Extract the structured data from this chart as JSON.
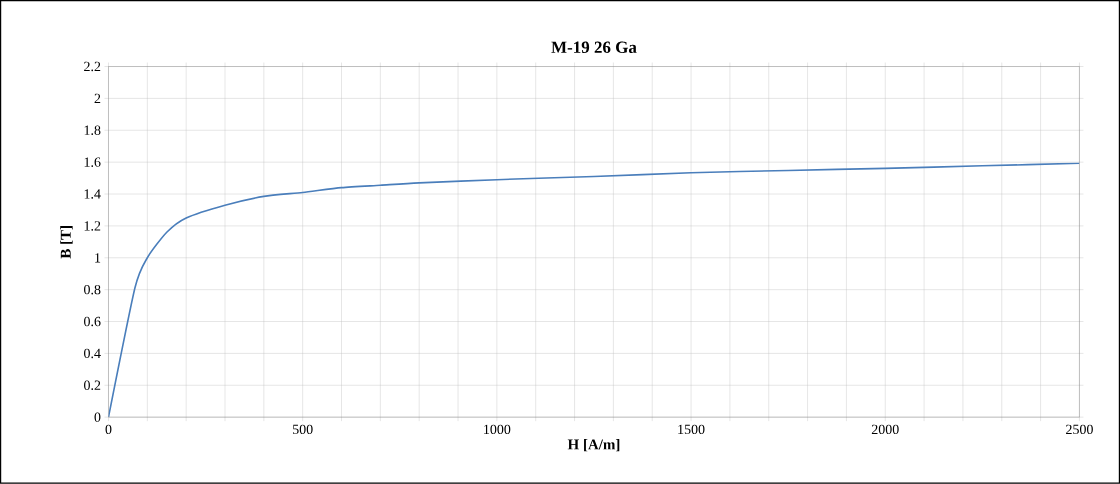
{
  "chart_data": {
    "type": "line",
    "title": "M-19 26 Ga",
    "xlabel": "H [A/m]",
    "ylabel": "B [T]",
    "x": [
      0,
      68,
      100,
      150,
      200,
      300,
      400,
      500,
      600,
      700,
      800,
      1000,
      1250,
      1500,
      1750,
      2000,
      2250,
      2500
    ],
    "series": [
      {
        "color": "#4a7ebb",
        "values": [
          0,
          0.81,
          1.0,
          1.16,
          1.25,
          1.33,
          1.385,
          1.41,
          1.44,
          1.455,
          1.47,
          1.49,
          1.51,
          1.533,
          1.548,
          1.561,
          1.577,
          1.593
        ]
      }
    ],
    "xlim": [
      0,
      2500
    ],
    "ylim": [
      0,
      2.2
    ],
    "xticks": [
      0,
      {
        "value": 100,
        "label": null
      },
      {
        "value": 200,
        "label": null
      },
      {
        "value": 300,
        "label": null
      },
      {
        "value": 400,
        "label": null
      },
      500,
      {
        "value": 600,
        "label": null
      },
      {
        "value": 700,
        "label": null
      },
      {
        "value": 800,
        "label": null
      },
      {
        "value": 900,
        "label": null
      },
      1000,
      {
        "value": 1100,
        "label": null
      },
      {
        "value": 1200,
        "label": null
      },
      {
        "value": 1300,
        "label": null
      },
      {
        "value": 1400,
        "label": null
      },
      1500,
      {
        "value": 1600,
        "label": null
      },
      {
        "value": 1700,
        "label": null
      },
      {
        "value": 1800,
        "label": null
      },
      {
        "value": 1900,
        "label": null
      },
      2000,
      {
        "value": 2100,
        "label": null
      },
      {
        "value": 2200,
        "label": null
      },
      {
        "value": 2300,
        "label": null
      },
      {
        "value": 2400,
        "label": null
      },
      2500
    ],
    "yticks": [
      0,
      0.2,
      0.4,
      0.6,
      0.8,
      1,
      1.2,
      1.4,
      1.6,
      1.8,
      2,
      2.2
    ],
    "grid": true,
    "marker": "none",
    "line_style": "solid"
  }
}
